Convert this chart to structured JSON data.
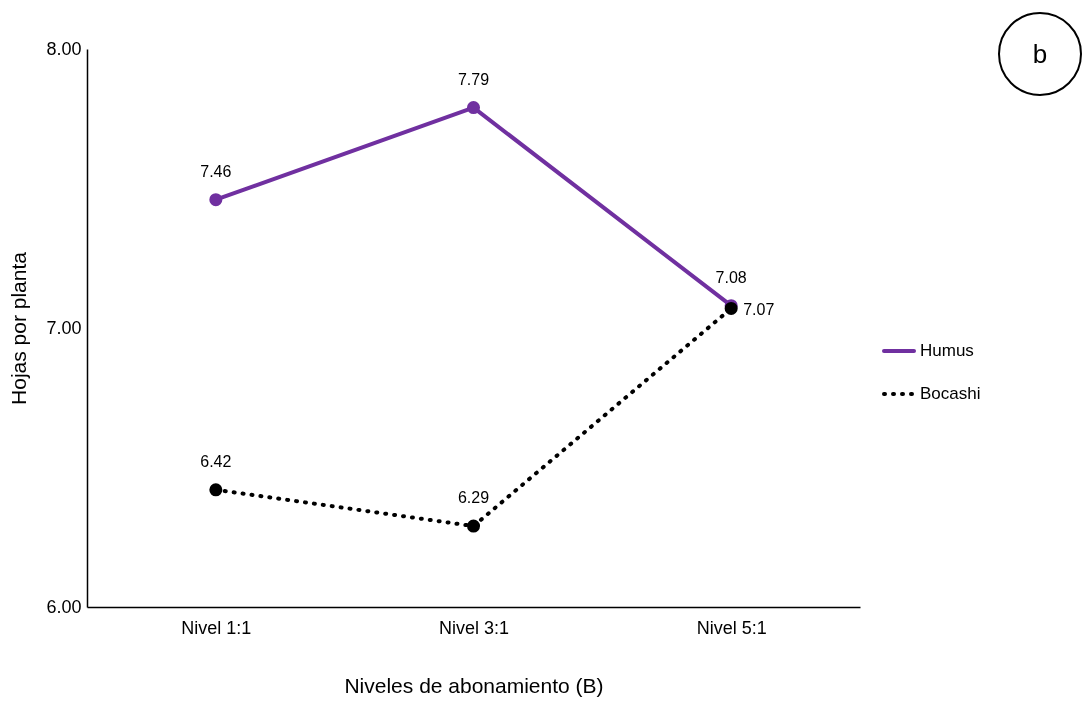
{
  "chart_data": {
    "type": "line",
    "xlabel": "Niveles de abonamiento (B)",
    "ylabel": "Hojas por planta",
    "categories": [
      "Nivel 1:1",
      "Nivel 3:1",
      "Nivel 5:1"
    ],
    "series": [
      {
        "name": "Humus",
        "color": "#7030a0",
        "values": [
          7.46,
          7.79,
          7.08
        ],
        "line_style": "solid"
      },
      {
        "name": "Bocashi",
        "color": "#000000",
        "values": [
          6.42,
          6.29,
          7.07
        ],
        "line_style": "dotted"
      }
    ],
    "ylim": [
      6,
      8
    ],
    "yticks": [
      {
        "value": 6,
        "label": "6.00"
      },
      {
        "value": 7,
        "label": "7.00"
      },
      {
        "value": 8,
        "label": "8.00"
      }
    ],
    "data_labels": true,
    "legend": "right",
    "marker": "circle",
    "grid": false,
    "annotations": [
      "b"
    ]
  }
}
